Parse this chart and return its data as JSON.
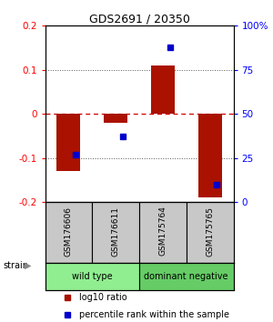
{
  "title": "GDS2691 / 20350",
  "samples": [
    "GSM176606",
    "GSM176611",
    "GSM175764",
    "GSM175765"
  ],
  "log10_ratio": [
    -0.13,
    -0.02,
    0.11,
    -0.19
  ],
  "percentile_rank": [
    27,
    37,
    88,
    10
  ],
  "ylim_log": [
    -0.2,
    0.2
  ],
  "ylim_pct": [
    0,
    100
  ],
  "yticks_log": [
    -0.2,
    -0.1,
    0,
    0.1,
    0.2
  ],
  "yticks_pct": [
    0,
    25,
    50,
    75,
    100
  ],
  "ytick_labels_log": [
    "-0.2",
    "-0.1",
    "0",
    "0.1",
    "0.2"
  ],
  "ytick_labels_pct": [
    "0",
    "25",
    "50",
    "75",
    "100%"
  ],
  "groups": [
    {
      "label": "wild type",
      "samples": [
        0,
        1
      ],
      "color": "#90EE90"
    },
    {
      "label": "dominant negative",
      "samples": [
        2,
        3
      ],
      "color": "#66CC66"
    }
  ],
  "bar_color": "#AA1100",
  "dot_color": "#0000CC",
  "zero_line_color": "#CC0000",
  "dotted_line_color": "#555555",
  "bar_width": 0.5,
  "strain_label": "strain",
  "legend_bar_color": "#AA1100",
  "legend_dot_color": "#0000CC",
  "legend_items": [
    "log10 ratio",
    "percentile rank within the sample"
  ],
  "label_box_color": "#C8C8C8"
}
